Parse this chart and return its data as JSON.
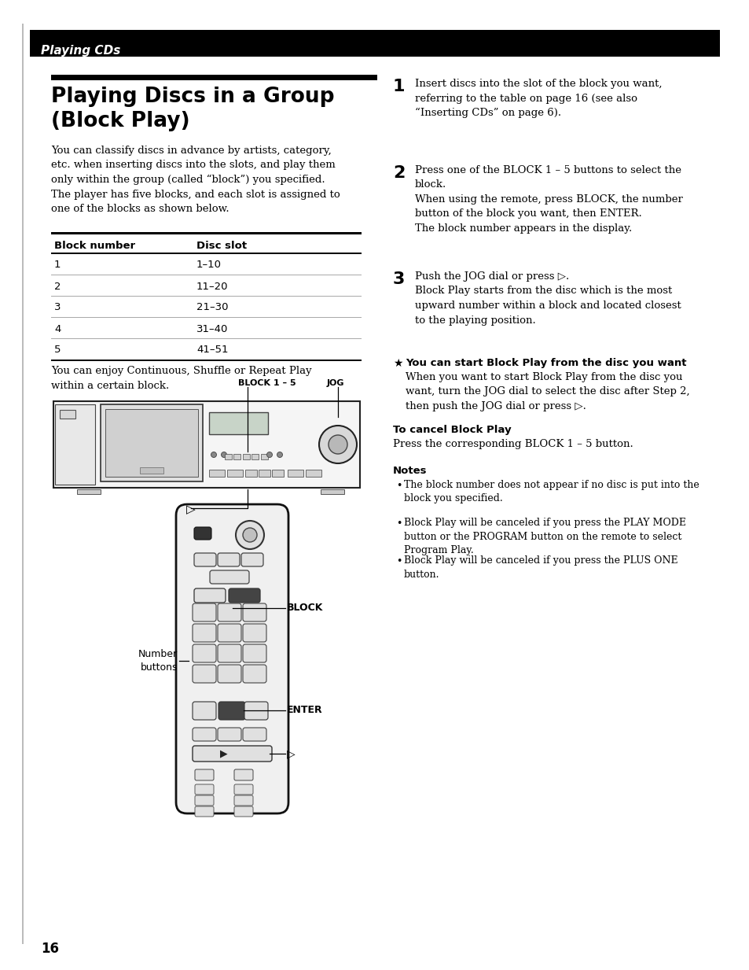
{
  "page_bg": "#ffffff",
  "header_bar_color": "#000000",
  "header_text": "Playing CDs",
  "header_text_color": "#ffffff",
  "body_text_left": "You can classify discs in advance by artists, category,\netc. when inserting discs into the slots, and play them\nonly within the group (called “block”) you specified.\nThe player has five blocks, and each slot is assigned to\none of the blocks as shown below.",
  "table_headers": [
    "Block number",
    "Disc slot"
  ],
  "table_rows": [
    [
      "1",
      "1–10"
    ],
    [
      "2",
      "11–20"
    ],
    [
      "3",
      "21–30"
    ],
    [
      "4",
      "31–40"
    ],
    [
      "5",
      "41–51"
    ]
  ],
  "below_table_text": "You can enjoy Continuous, Shuffle or Repeat Play\nwithin a certain block.",
  "device_label1": "BLOCK 1 – 5",
  "device_label2": "JOG",
  "play_symbol": "▷",
  "remote_label_block": "BLOCK",
  "remote_label_enter": "ENTER",
  "remote_label_number": "Number\nbuttons",
  "right_col_steps": [
    {
      "num": "1",
      "text": "Insert discs into the slot of the block you want,\nreferring to the table on page 16 (see also\n“Inserting CDs” on page 6)."
    },
    {
      "num": "2",
      "text": "Press one of the BLOCK 1 – 5 buttons to select the\nblock.\nWhen using the remote, press BLOCK, the number\nbutton of the block you want, then ENTER.\nThe block number appears in the display."
    },
    {
      "num": "3",
      "text": "Push the JOG dial or press ▷.\nBlock Play starts from the disc which is the most\nupward number within a block and located closest\nto the playing position."
    }
  ],
  "tip_text_bold": "You can start Block Play from the disc you want",
  "tip_text": "When you want to start Block Play from the disc you\nwant, turn the JOG dial to select the disc after Step 2,\nthen push the JOG dial or press ▷.",
  "cancel_title": "To cancel Block Play",
  "cancel_text": "Press the corresponding BLOCK 1 – 5 button.",
  "notes_title": "Notes",
  "notes": [
    "The block number does not appear if no disc is put into the\nblock you specified.",
    "Block Play will be canceled if you press the PLAY MODE\nbutton or the PROGRAM button on the remote to select\nProgram Play.",
    "Block Play will be canceled if you press the PLUS ONE\nbutton."
  ],
  "page_number": "16"
}
